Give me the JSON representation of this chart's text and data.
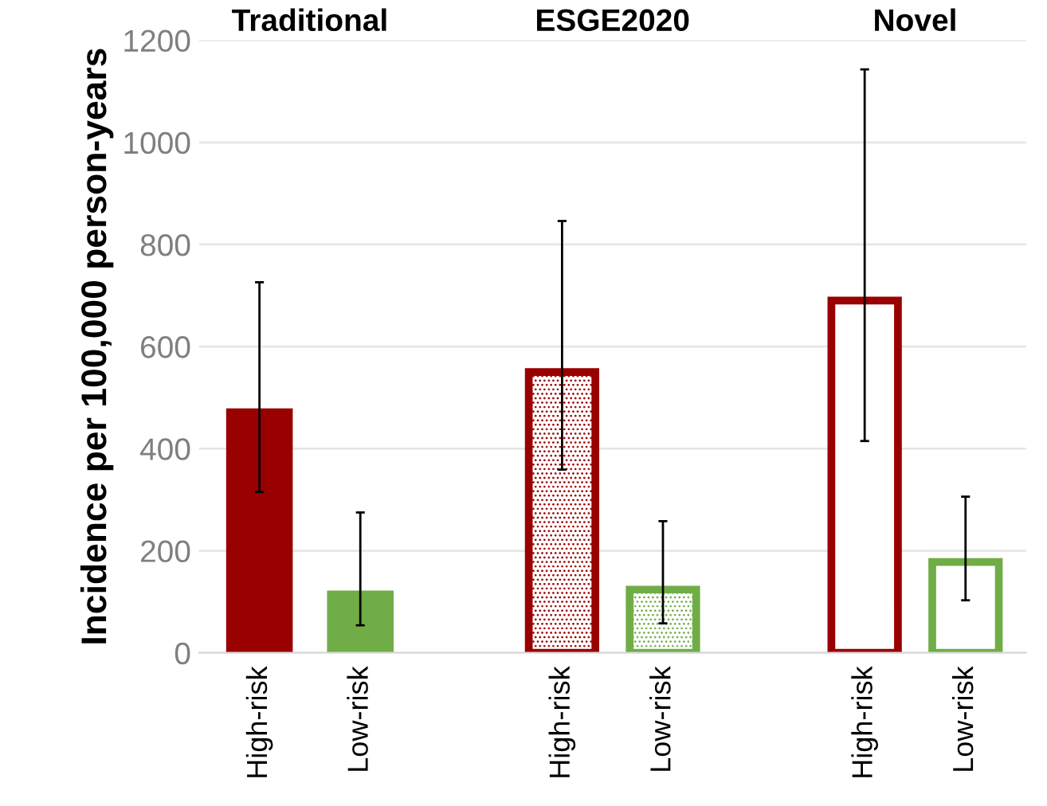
{
  "chart_data": {
    "type": "bar",
    "ylabel": "Incidence per 100,000 person-years",
    "annotations": [
      "Traditional",
      "ESGE2020",
      "Novel"
    ],
    "categories": [
      "High-risk",
      "Low-risk",
      null,
      "High-risk",
      "Low-risk",
      null,
      "High-risk",
      "Low-risk"
    ],
    "values": [
      479,
      122,
      null,
      550,
      124,
      null,
      690,
      178
    ],
    "errors": [
      [
        315,
        726
      ],
      [
        54,
        275
      ],
      null,
      [
        359,
        846
      ],
      [
        58,
        258
      ],
      null,
      [
        415,
        1143
      ],
      [
        103,
        306
      ]
    ],
    "colors": [
      "#990000",
      "#70ad47",
      null,
      "#990000",
      "#70ad47",
      null,
      "#990000",
      "#70ad47"
    ],
    "ylim": [
      0,
      1200
    ],
    "yticks": [
      0,
      200,
      400,
      600,
      800,
      1000,
      1200
    ],
    "grid": "y"
  }
}
